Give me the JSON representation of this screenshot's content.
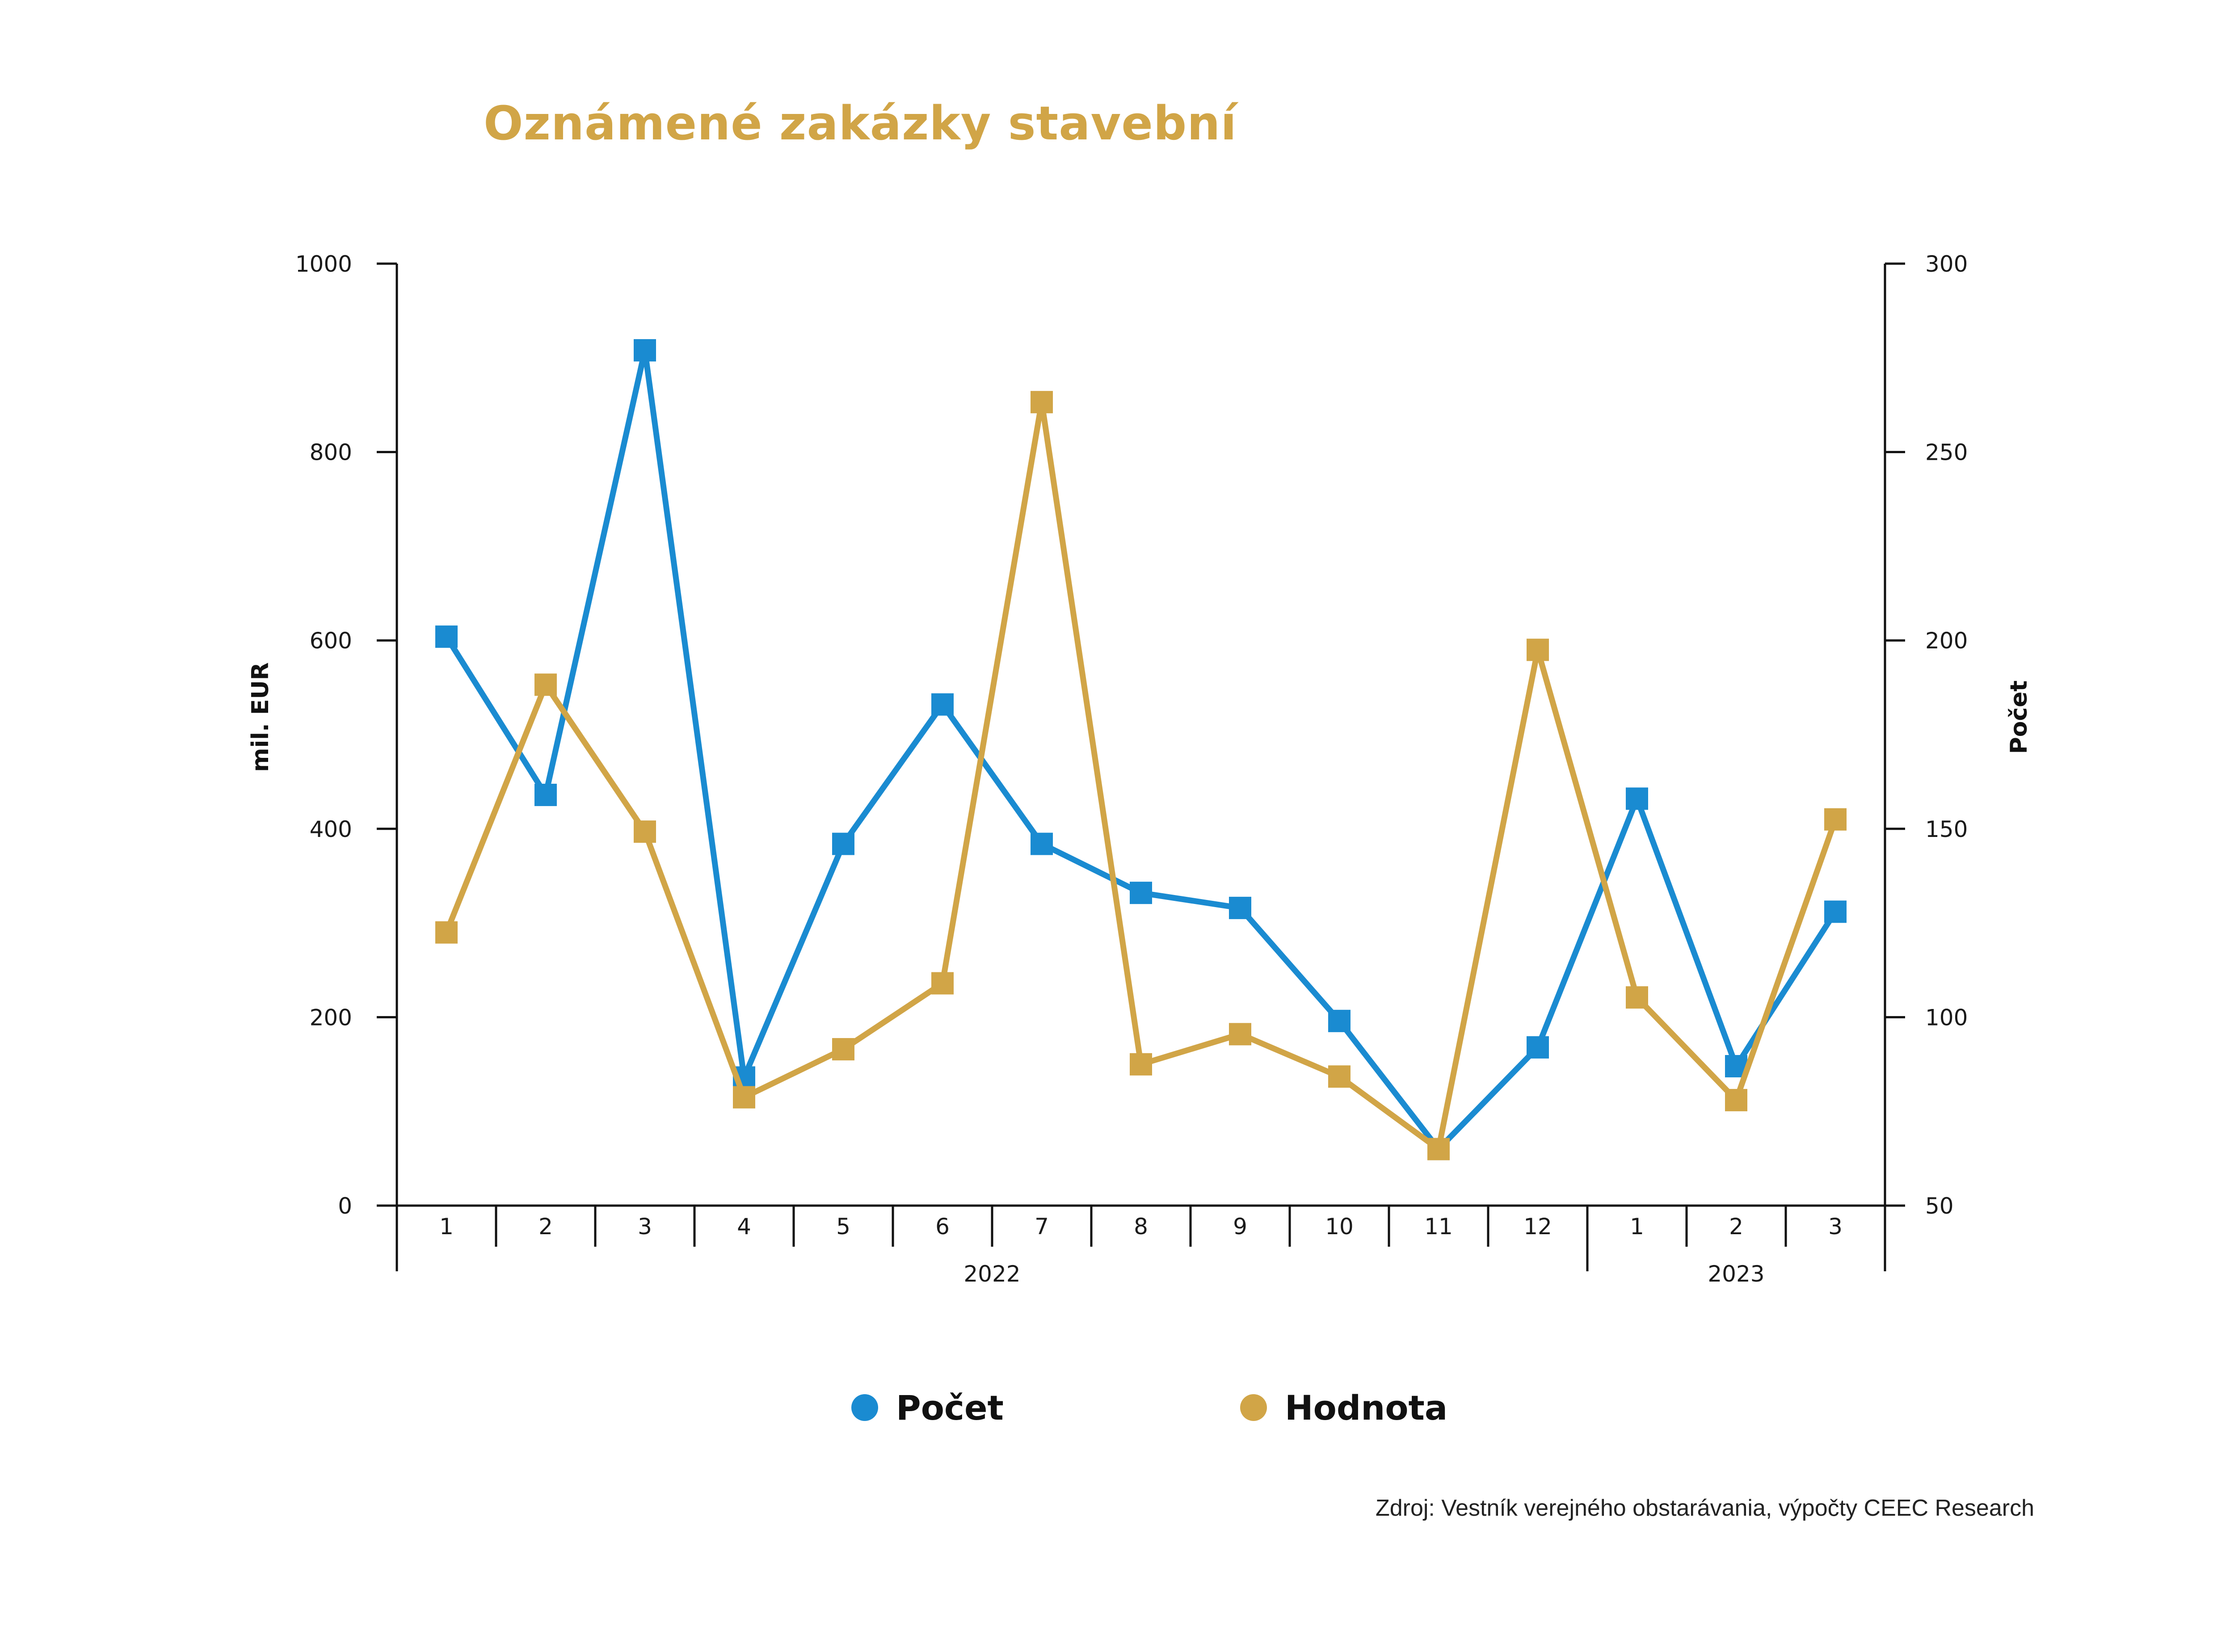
{
  "chart_data": {
    "type": "line",
    "title": "Oznámené zakázky stavební",
    "ylabel_left": "mil. EUR",
    "ylabel_right": "Počet",
    "ylim_left": [
      0,
      1000
    ],
    "ylim_right": [
      50,
      300
    ],
    "yticks_left": [
      "0",
      "200",
      "400",
      "600",
      "800",
      "1000"
    ],
    "yticks_right": [
      "50",
      "100",
      "150",
      "200",
      "250",
      "300"
    ],
    "categories": [
      "1",
      "2",
      "3",
      "4",
      "5",
      "6",
      "7",
      "8",
      "9",
      "10",
      "11",
      "12",
      "1",
      "2",
      "3"
    ],
    "years": [
      {
        "label": "2022",
        "start": 0,
        "end": 11
      },
      {
        "label": "2023",
        "start": 12,
        "end": 14
      }
    ],
    "series": [
      {
        "name": "Počet",
        "axis": "right",
        "color": "#1a8bd1",
        "values": [
          201,
          159,
          277,
          84,
          146,
          183,
          146,
          133,
          129,
          99,
          65,
          92,
          158,
          87,
          128
        ]
      },
      {
        "name": "Hodnota",
        "axis": "left",
        "color": "#d1a547",
        "values": [
          290,
          553,
          397,
          115,
          166,
          236,
          853,
          150,
          182,
          137,
          60,
          590,
          221,
          112,
          410
        ]
      }
    ],
    "legend_position": "bottom-center"
  },
  "source": "Zdroj: Vestník verejného obstarávania, výpočty CEEC Research"
}
